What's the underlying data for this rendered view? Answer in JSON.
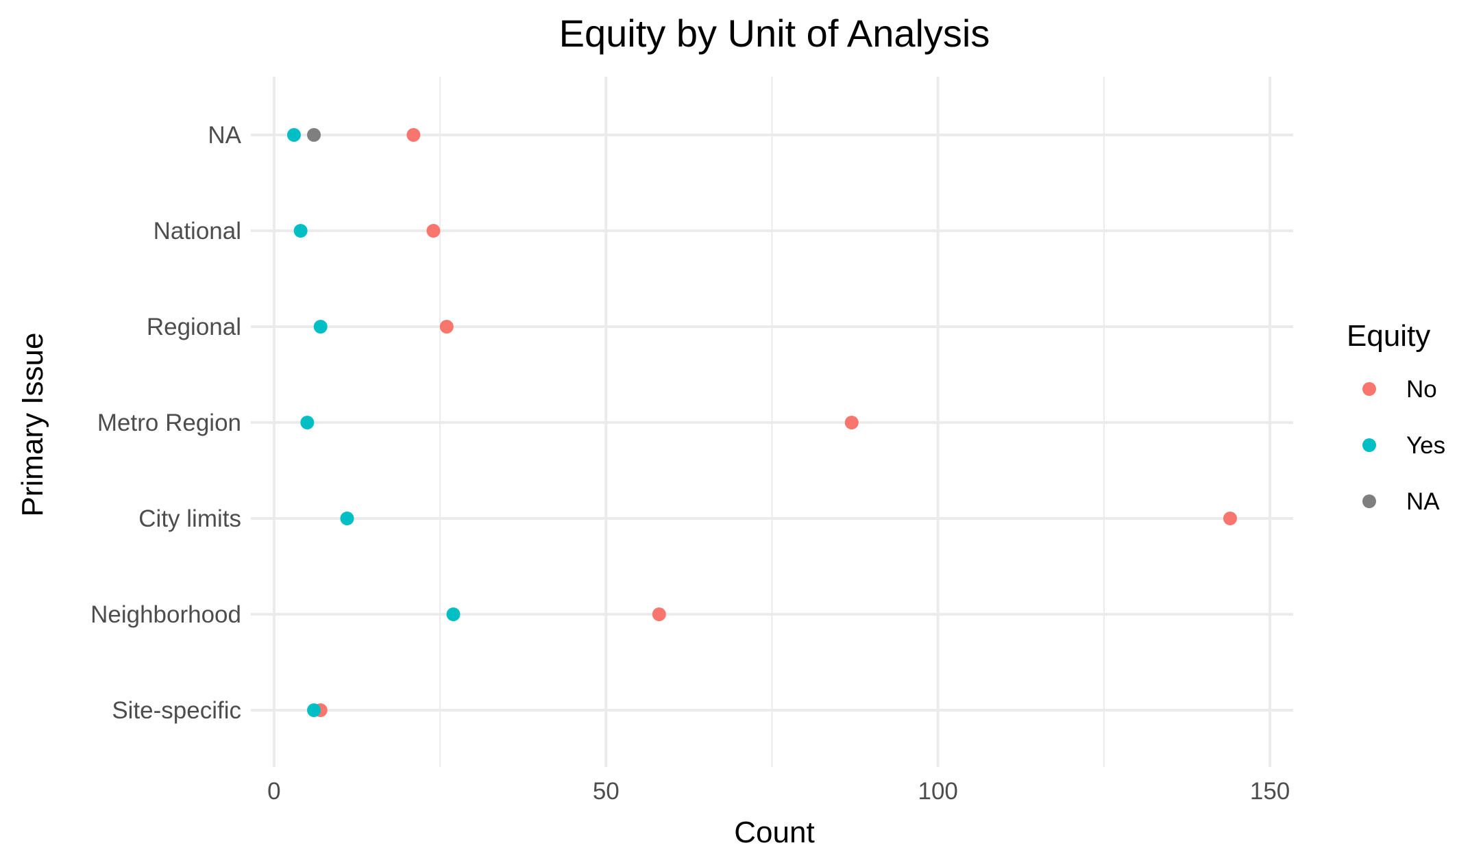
{
  "chart_data": {
    "type": "scatter",
    "title": "Equity by Unit of Analysis",
    "xlabel": "Count",
    "ylabel": "Primary Issue",
    "xlim": [
      -3.5,
      153.5
    ],
    "x_ticks": [
      0,
      50,
      100,
      150
    ],
    "categories": [
      "NA",
      "National",
      "Regional",
      "Metro Region",
      "City limits",
      "Neighborhood",
      "Site-specific"
    ],
    "grid": true,
    "legend": {
      "title": "Equity",
      "position": "right"
    },
    "series": [
      {
        "name": "No",
        "color": "#F8766D",
        "points": [
          {
            "category": "NA",
            "x": 21
          },
          {
            "category": "National",
            "x": 24
          },
          {
            "category": "Regional",
            "x": 26
          },
          {
            "category": "Metro Region",
            "x": 87
          },
          {
            "category": "City limits",
            "x": 144
          },
          {
            "category": "Neighborhood",
            "x": 58
          },
          {
            "category": "Site-specific",
            "x": 7
          }
        ]
      },
      {
        "name": "Yes",
        "color": "#00BFC4",
        "points": [
          {
            "category": "NA",
            "x": 3
          },
          {
            "category": "National",
            "x": 4
          },
          {
            "category": "Regional",
            "x": 7
          },
          {
            "category": "Metro Region",
            "x": 5
          },
          {
            "category": "City limits",
            "x": 11
          },
          {
            "category": "Neighborhood",
            "x": 27
          },
          {
            "category": "Site-specific",
            "x": 6
          }
        ]
      },
      {
        "name": "NA",
        "color": "#7F7F7F",
        "points": [
          {
            "category": "NA",
            "x": 6
          }
        ]
      }
    ]
  }
}
